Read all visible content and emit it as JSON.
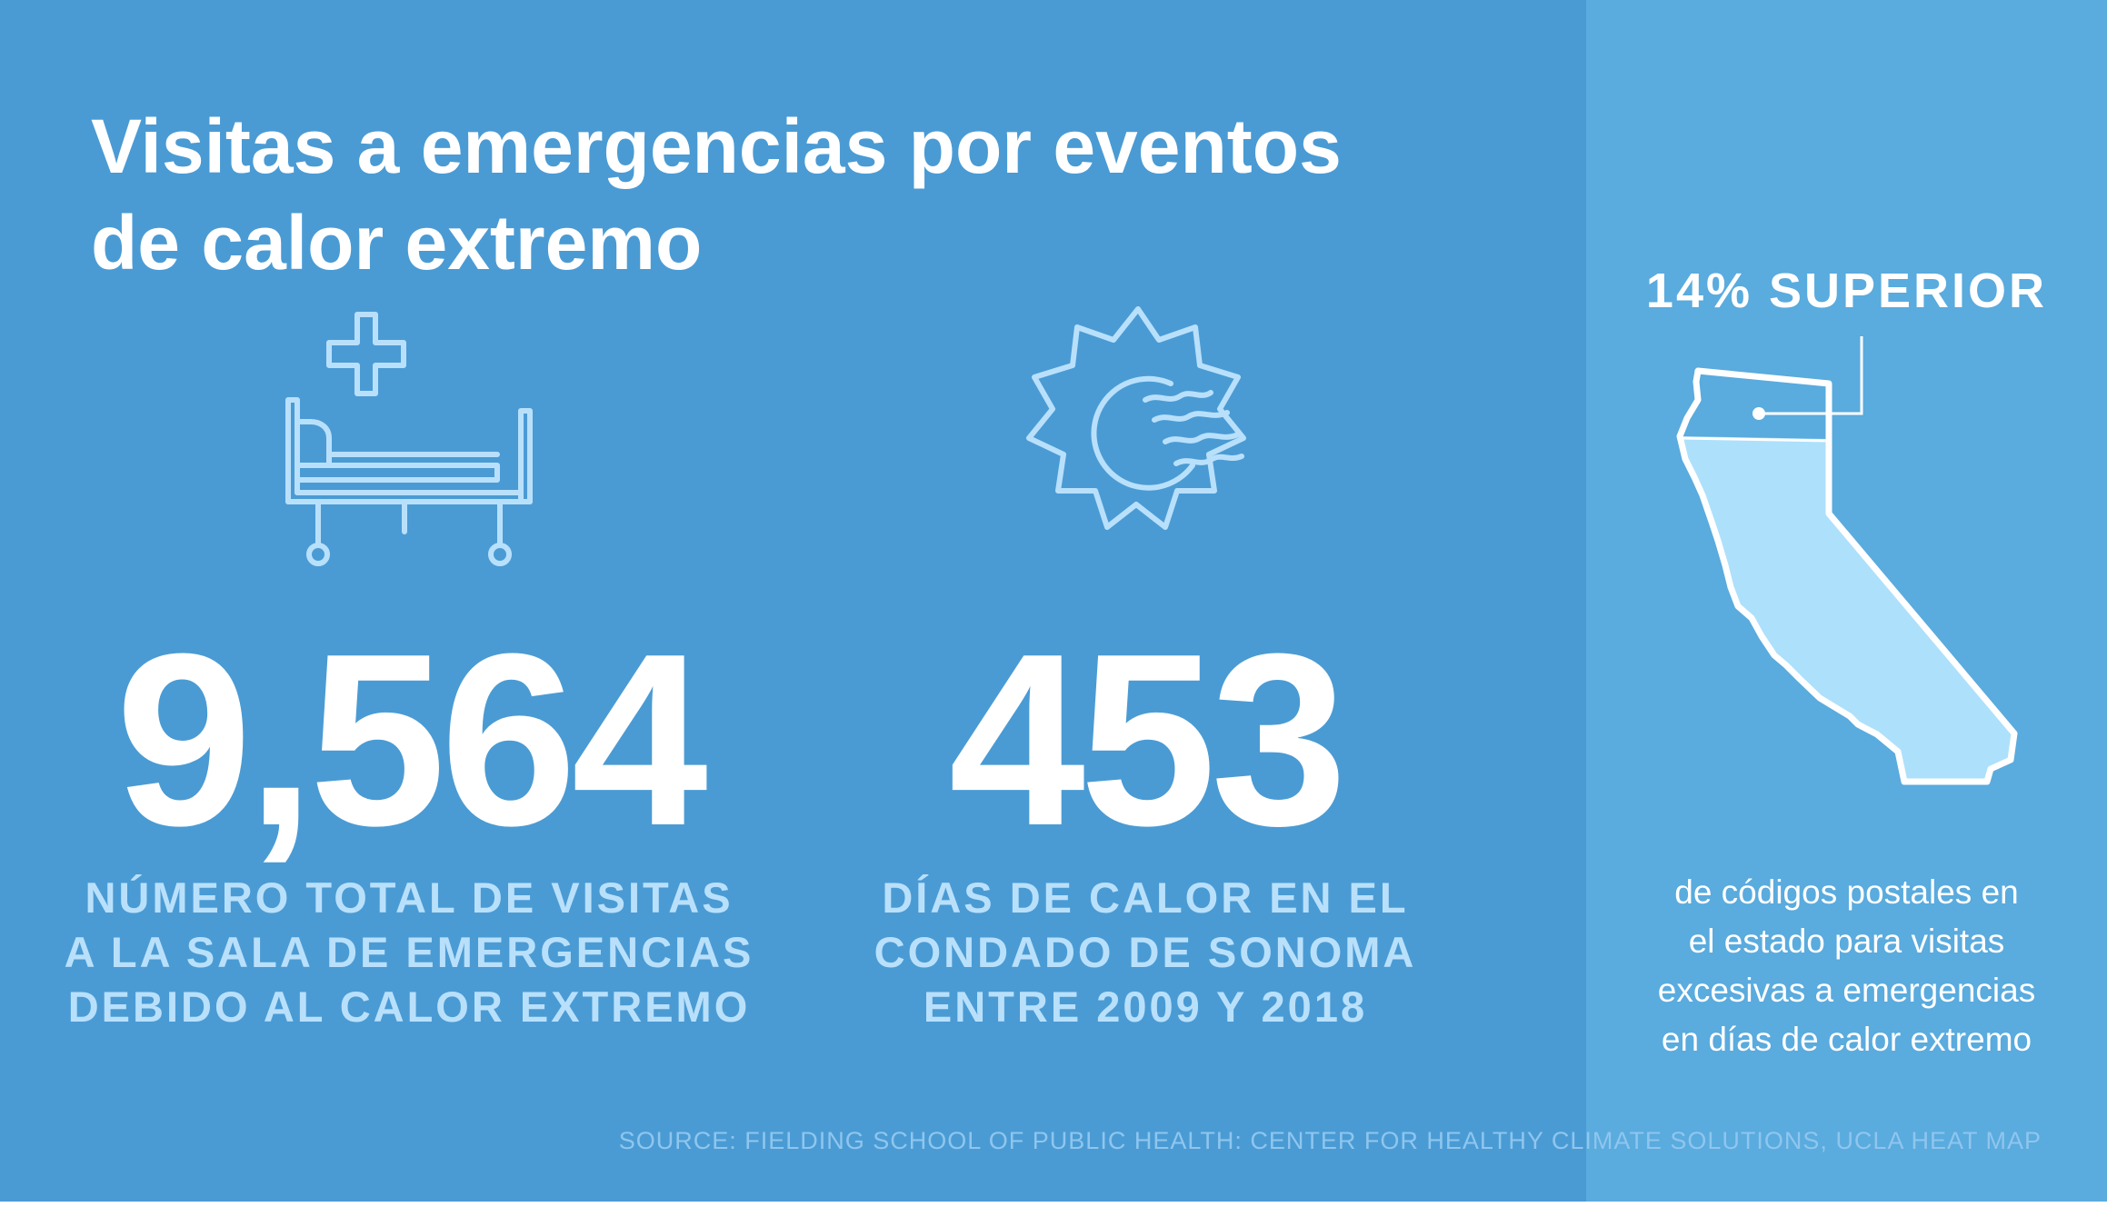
{
  "title": {
    "line1": "Visitas a emergencias por eventos",
    "line2": "de calor extremo"
  },
  "stats": [
    {
      "value": "9,564",
      "label_lines": [
        "NÚMERO TOTAL DE VISITAS",
        "A LA SALA DE EMERGENCIAS",
        "DEBIDO AL CALOR EXTREMO"
      ],
      "icon": "hospital-bed-icon"
    },
    {
      "value": "453",
      "label_lines": [
        "DÍAS DE CALOR EN EL",
        "CONDADO DE SONOMA",
        "ENTRE 2009 Y 2018"
      ],
      "icon": "hot-sun-icon"
    }
  ],
  "callout": {
    "headline": "14% SUPERIOR",
    "caption_lines": [
      "de códigos postales en",
      "el estado para visitas",
      "excesivas a emergencias",
      "en días de calor extremo"
    ],
    "icon": "california-map-icon"
  },
  "source": "SOURCE: FIELDING SCHOOL OF PUBLIC HEALTH: CENTER FOR HEALTHY CLIMATE SOLUTIONS, UCLA HEAT MAP",
  "colors": {
    "background": "#4a9bd4",
    "panel": "#5aabde",
    "accent_light": "#b9e0fb",
    "white": "#ffffff"
  }
}
